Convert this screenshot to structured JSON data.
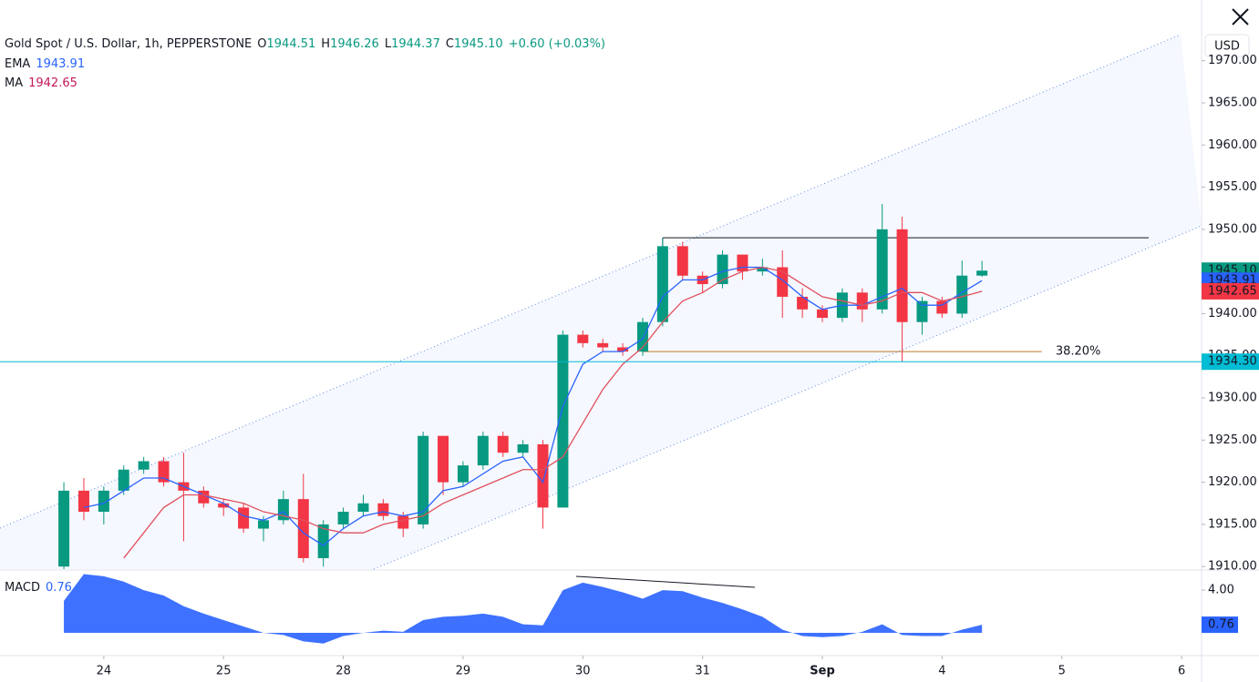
{
  "chart_data": {
    "type": "candlestick",
    "title": "Gold Spot / U.S. Dollar, 1h, PEPPERSTONE",
    "ohlc_legend": [
      {
        "key": "O",
        "text": "1944.51"
      },
      {
        "key": "H",
        "text": "1946.26"
      },
      {
        "key": "L",
        "text": "1944.37"
      },
      {
        "key": "C",
        "text": "1945.10"
      }
    ],
    "change": "+0.60 (+0.03%)",
    "currency": "USD",
    "up_color": "#089981",
    "down_color": "#f23645",
    "categories": [
      null,
      null,
      null,
      null,
      null,
      null,
      null,
      null,
      null,
      null,
      null,
      null,
      null,
      null,
      null,
      null,
      null,
      null,
      null,
      null,
      null,
      null,
      null,
      null,
      null,
      null,
      null,
      null,
      null,
      null,
      null,
      null,
      null,
      null,
      null,
      null,
      null,
      null,
      null,
      null,
      null,
      null,
      null,
      null,
      null,
      null,
      null
    ],
    "candles": [
      [
        1910,
        1920,
        1909.7,
        1919
      ],
      [
        1919,
        1920.5,
        1915.5,
        1916.5
      ],
      [
        1916.5,
        1919.5,
        1915,
        1919
      ],
      [
        1919,
        1922,
        1918.5,
        1921.5
      ],
      [
        1921.5,
        1923,
        1921,
        1922.5
      ],
      [
        1922.5,
        1923,
        1919.5,
        1920
      ],
      [
        1920,
        1923.5,
        1913,
        1919
      ],
      [
        1919,
        1919.5,
        1917,
        1917.5
      ],
      [
        1917.5,
        1918,
        1916,
        1917
      ],
      [
        1917,
        1917.5,
        1914,
        1914.5
      ],
      [
        1914.5,
        1916,
        1913,
        1915.5
      ],
      [
        1915.5,
        1919,
        1915,
        1918
      ],
      [
        1918,
        1921,
        1910.5,
        1911
      ],
      [
        1911,
        1915.5,
        1910,
        1915
      ],
      [
        1915,
        1917,
        1914.5,
        1916.5
      ],
      [
        1916.5,
        1918.5,
        1916,
        1917.5
      ],
      [
        1917.5,
        1918,
        1915.5,
        1916
      ],
      [
        1916,
        1916.5,
        1913.5,
        1914.5
      ],
      [
        1915,
        1926,
        1914.5,
        1925.5
      ],
      [
        1925.5,
        1925.5,
        1918.5,
        1920
      ],
      [
        1920,
        1922.5,
        1919.5,
        1922
      ],
      [
        1922,
        1926,
        1921.5,
        1925.5
      ],
      [
        1925.5,
        1926,
        1923,
        1923.5
      ],
      [
        1923.5,
        1925,
        1923,
        1924.5
      ],
      [
        1924.5,
        1925,
        1914.5,
        1917
      ],
      [
        1917,
        1938,
        1917,
        1937.5
      ],
      [
        1937.5,
        1938,
        1936,
        1936.5
      ],
      [
        1936.5,
        1937,
        1935.5,
        1936
      ],
      [
        1936,
        1936.5,
        1935,
        1935.5
      ],
      [
        1935.5,
        1939.5,
        1935,
        1939
      ],
      [
        1939,
        1949,
        1938.5,
        1948
      ],
      [
        1948,
        1948.5,
        1944,
        1944.5
      ],
      [
        1944.5,
        1945,
        1942.5,
        1943.5
      ],
      [
        1943.5,
        1947.5,
        1943,
        1947
      ],
      [
        1947,
        1947,
        1944,
        1945
      ],
      [
        1945,
        1946.5,
        1944.5,
        1945.5
      ],
      [
        1945.5,
        1947.5,
        1939.5,
        1942
      ],
      [
        1942,
        1943,
        1939.5,
        1940.5
      ],
      [
        1940.5,
        1941,
        1939,
        1939.5
      ],
      [
        1939.5,
        1943,
        1939,
        1942.5
      ],
      [
        1942.5,
        1943,
        1939,
        1940.5
      ],
      [
        1940.5,
        1953,
        1940,
        1950
      ],
      [
        1950,
        1951.5,
        1934.3,
        1939
      ],
      [
        1939,
        1942,
        1937.5,
        1941.5
      ],
      [
        1941.5,
        1942,
        1939.5,
        1940
      ],
      [
        1940,
        1946.3,
        1939.5,
        1944.51
      ],
      [
        1944.51,
        1946.26,
        1944.37,
        1945.1
      ]
    ],
    "series": [
      {
        "name": "EMA",
        "color": "#2962ff",
        "value_label": "1943.91",
        "values": [
          null,
          1917,
          1917.5,
          1919,
          1920.5,
          1920.5,
          1919.5,
          1918.5,
          1917.5,
          1916,
          1915.5,
          1916.5,
          1914,
          1912.5,
          1914.5,
          1916,
          1916.5,
          1916,
          1916.5,
          1919,
          1919.5,
          1921,
          1922.5,
          1923,
          1920,
          1929,
          1934,
          1935.5,
          1935.5,
          1937,
          1942,
          1944,
          1944,
          1945,
          1945.5,
          1945.5,
          1944,
          1942,
          1940.5,
          1941,
          1941,
          1942,
          1943,
          1941,
          1941,
          1942.5,
          1943.91
        ]
      },
      {
        "name": "MA",
        "color": "#e0505e",
        "value_label": "1942.65",
        "values": [
          null,
          null,
          null,
          1911,
          1914,
          1917,
          1918.5,
          1918.5,
          1918,
          1917.5,
          1916.5,
          1916,
          1915.5,
          1914.5,
          1914,
          1914,
          1915,
          1915.5,
          1916,
          1917.5,
          1918.5,
          1919.5,
          1920.5,
          1921.5,
          1921.5,
          1923,
          1927,
          1931,
          1934,
          1936,
          1939,
          1941.5,
          1942.5,
          1944,
          1945,
          1945.5,
          1945,
          1943.5,
          1942,
          1941.5,
          1941,
          1941.5,
          1942.5,
          1942.5,
          1941.5,
          1942,
          1942.65
        ]
      }
    ],
    "price_badges": [
      {
        "value": 1945.1,
        "label": "1945.10",
        "color": "#089981"
      },
      {
        "value": 1943.91,
        "label": "1943.91",
        "color": "#2962ff"
      },
      {
        "value": 1942.65,
        "label": "1942.65",
        "color": "#f23645"
      },
      {
        "value": 1934.3,
        "label": "1934.30",
        "color": "#00bcd4"
      }
    ],
    "fib": {
      "label": "38.20%",
      "value": 1935.5
    },
    "resistance": 1949,
    "xlim": [
      -3.2,
      57
    ],
    "xticks": [
      {
        "value": 2,
        "label": "24"
      },
      {
        "value": 8,
        "label": "25"
      },
      {
        "value": 14,
        "label": "28"
      },
      {
        "value": 20,
        "label": "29"
      },
      {
        "value": 26,
        "label": "30"
      },
      {
        "value": 32,
        "label": "31"
      },
      {
        "value": 38,
        "label": "Sep"
      },
      {
        "value": 44,
        "label": "4"
      },
      {
        "value": 50,
        "label": "5"
      },
      {
        "value": 56,
        "label": "6"
      }
    ],
    "ylim": [
      1909.7,
      1977.2
    ],
    "yticks": [
      {
        "value": 1910,
        "label": "1910.00"
      },
      {
        "value": 1915,
        "label": "1915.00"
      },
      {
        "value": 1920,
        "label": "1920.00"
      },
      {
        "value": 1925,
        "label": "1925.00"
      },
      {
        "value": 1930,
        "label": "1930.00"
      },
      {
        "value": 1935,
        "label": "1935.00"
      },
      {
        "value": 1940,
        "label": "1940.00"
      },
      {
        "value": 1945,
        "label": "1945.00"
      },
      {
        "value": 1950,
        "label": "1950.00"
      },
      {
        "value": 1955,
        "label": "1955.00"
      },
      {
        "value": 1960,
        "label": "1960.00"
      },
      {
        "value": 1965,
        "label": "1965.00"
      },
      {
        "value": 1970,
        "label": "1970.00"
      }
    ],
    "macd": {
      "name": "MACD",
      "color": "#2962ff",
      "values": [
        3,
        5.5,
        5.3,
        4.8,
        4,
        3.5,
        2.5,
        1.8,
        1.2,
        0.6,
        0,
        -0.2,
        -0.8,
        -1,
        -0.3,
        0,
        0.2,
        0.1,
        1.2,
        1.5,
        1.6,
        1.8,
        1.5,
        0.8,
        0.7,
        4,
        4.7,
        4.3,
        3.8,
        3.2,
        4,
        3.9,
        3.3,
        2.8,
        2.2,
        1.5,
        0.3,
        -0.3,
        -0.4,
        -0.3,
        0.1,
        0.8,
        -0.2,
        -0.3,
        -0.3,
        0.3,
        0.76
      ],
      "ylim": [
        -2.13,
        5.8
      ],
      "yticks": [
        {
          "value": 4,
          "label": "4.00"
        }
      ]
    }
  }
}
